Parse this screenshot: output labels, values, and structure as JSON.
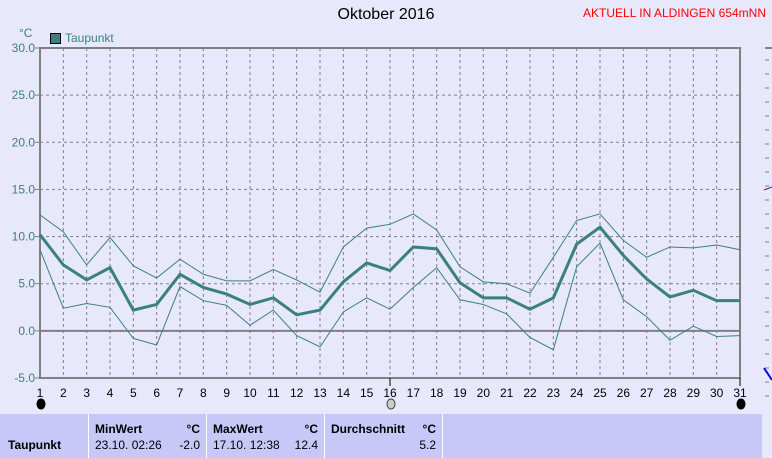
{
  "title": "Oktober 2016",
  "current_label": "AKTUELL IN ALDINGEN 654mNN",
  "colors": {
    "series": "#3a8080",
    "grid": "#808080",
    "title_current": "#ff0000",
    "background": "#e8e8fc",
    "table": "#c8c8f8"
  },
  "chart_data": {
    "type": "line",
    "title": "Oktober 2016",
    "ylabel": "°C",
    "ylim": [
      -5,
      30
    ],
    "yticks": [
      "30.0",
      "25.0",
      "20.0",
      "15.0",
      "10.0",
      "5.0",
      "0.0",
      "-5.0"
    ],
    "x": [
      1,
      2,
      3,
      4,
      5,
      6,
      7,
      8,
      9,
      10,
      11,
      12,
      13,
      14,
      15,
      16,
      17,
      18,
      19,
      20,
      21,
      22,
      23,
      24,
      25,
      26,
      27,
      28,
      29,
      30,
      31
    ],
    "grid": true,
    "legend": {
      "placement": "top-left",
      "entries": [
        "Taupunkt"
      ]
    },
    "series": [
      {
        "name": "Taupunkt",
        "role": "mean",
        "values": [
          10.2,
          7.0,
          5.4,
          6.7,
          2.2,
          2.8,
          6.0,
          4.6,
          3.9,
          2.8,
          3.5,
          1.7,
          2.2,
          5.2,
          7.2,
          6.4,
          8.9,
          8.7,
          5.1,
          3.5,
          3.5,
          2.3,
          3.5,
          9.2,
          11.0,
          8.0,
          5.5,
          3.6,
          4.3,
          3.2,
          3.2
        ]
      },
      {
        "role": "max",
        "values": [
          12.3,
          10.5,
          7.0,
          9.9,
          6.9,
          5.6,
          7.6,
          6.0,
          5.3,
          5.3,
          6.5,
          5.4,
          4.1,
          8.9,
          10.9,
          11.3,
          12.4,
          10.7,
          6.8,
          5.2,
          5.0,
          4.0,
          7.8,
          11.7,
          12.4,
          9.6,
          7.8,
          8.9,
          8.8,
          9.1,
          8.6
        ]
      },
      {
        "role": "min",
        "values": [
          8.6,
          2.4,
          2.9,
          2.5,
          -0.8,
          -1.5,
          4.7,
          3.2,
          2.7,
          0.6,
          2.2,
          -0.5,
          -1.7,
          2.0,
          3.5,
          2.3,
          4.6,
          6.7,
          3.3,
          2.8,
          1.8,
          -0.7,
          -2.0,
          6.8,
          9.3,
          3.3,
          1.5,
          -1.0,
          0.5,
          -0.6,
          -0.5
        ]
      }
    ],
    "moon_phases": [
      {
        "day": 1,
        "phase": "new-moon"
      },
      {
        "day": 16,
        "phase": "full-moon"
      },
      {
        "day": 31,
        "phase": "new-moon"
      }
    ]
  },
  "table": {
    "row_label": "Taupunkt",
    "min": {
      "header": "MinWert",
      "unit": "°C",
      "time": "23.10.  02:26",
      "value": "-2.0"
    },
    "max": {
      "header": "MaxWert",
      "unit": "°C",
      "time": "17.10.  12:38",
      "value": "12.4"
    },
    "avg": {
      "header": "Durchschnitt",
      "unit": "°C",
      "value": "5.2"
    }
  }
}
